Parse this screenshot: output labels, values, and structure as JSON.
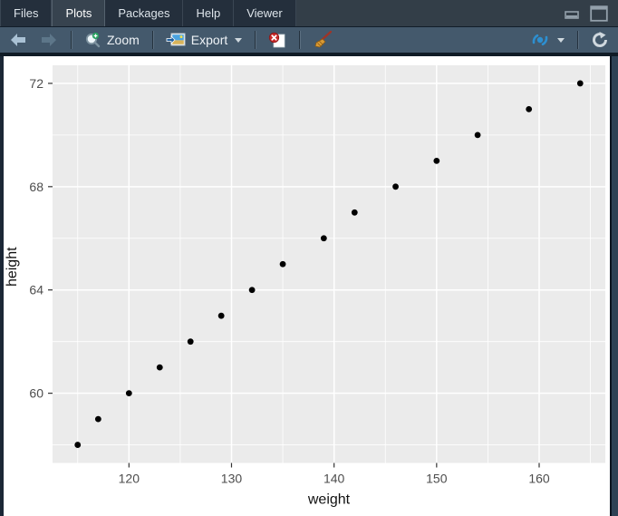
{
  "header": {
    "tabs": [
      {
        "label": "Files",
        "active": false
      },
      {
        "label": "Plots",
        "active": true
      },
      {
        "label": "Packages",
        "active": false
      },
      {
        "label": "Help",
        "active": false
      },
      {
        "label": "Viewer",
        "active": false
      }
    ]
  },
  "toolbar": {
    "zoom_label": "Zoom",
    "export_label": "Export",
    "icons": [
      "back-arrow",
      "forward-arrow",
      "zoom-magnifier",
      "export-image",
      "remove-plot",
      "clear-all-broom",
      "publish",
      "refresh"
    ]
  },
  "colors": {
    "tabbar_bg": "#1e2936",
    "tab_active_bg": "#37434f",
    "toolbar_bg": "#44596c",
    "pane_border_left": "#1b2736",
    "pane_border_right": "#2e4255",
    "publish_blue": "#2d8fd0",
    "back_arrow": "#a9c1d4",
    "forward_arrow_disabled": "#5d7689"
  },
  "chart_data": {
    "type": "scatter",
    "title": "",
    "xlabel": "weight",
    "ylabel": "height",
    "x": [
      115,
      117,
      120,
      123,
      126,
      129,
      132,
      135,
      139,
      142,
      146,
      150,
      154,
      159,
      164
    ],
    "y": [
      58,
      59,
      60,
      61,
      62,
      63,
      64,
      65,
      66,
      67,
      68,
      69,
      70,
      71,
      72
    ],
    "xlim": [
      112.55,
      166.45
    ],
    "ylim": [
      57.3,
      72.7
    ],
    "x_ticks": [
      120,
      130,
      140,
      150,
      160
    ],
    "y_ticks": [
      60,
      64,
      68,
      72
    ],
    "x_minor": [
      115,
      125,
      135,
      145,
      155,
      165
    ],
    "y_minor": [
      58,
      62,
      66,
      70
    ],
    "grid": true,
    "legend": "none",
    "panel_bg": "#EBEBEB",
    "grid_color": "#FFFFFF",
    "point_color": "#000000",
    "tick_label_color": "#4d4d4d",
    "axis_title_color": "#111111",
    "tick_color": "#333333"
  }
}
